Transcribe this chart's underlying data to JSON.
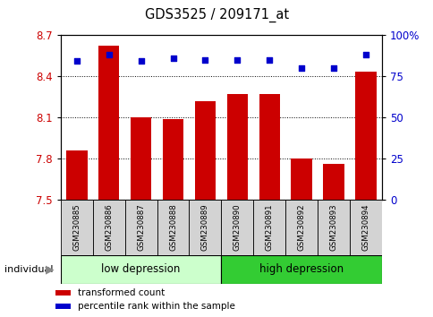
{
  "title": "GDS3525 / 209171_at",
  "samples": [
    "GSM230885",
    "GSM230886",
    "GSM230887",
    "GSM230888",
    "GSM230889",
    "GSM230890",
    "GSM230891",
    "GSM230892",
    "GSM230893",
    "GSM230894"
  ],
  "transformed_count": [
    7.86,
    8.62,
    8.1,
    8.09,
    8.22,
    8.27,
    8.27,
    7.8,
    7.76,
    8.43
  ],
  "percentile_rank": [
    84,
    88,
    84,
    86,
    85,
    85,
    85,
    80,
    80,
    88
  ],
  "ylim_left": [
    7.5,
    8.7
  ],
  "ylim_right": [
    0,
    100
  ],
  "yticks_left": [
    7.5,
    7.8,
    8.1,
    8.4,
    8.7
  ],
  "yticks_right": [
    0,
    25,
    50,
    75,
    100
  ],
  "yticks_right_labels": [
    "0",
    "25",
    "50",
    "75",
    "100%"
  ],
  "bar_color": "#cc0000",
  "dot_color": "#0000cc",
  "groups": [
    {
      "label": "low depression",
      "start": 0,
      "end": 5,
      "color": "#ccffcc"
    },
    {
      "label": "high depression",
      "start": 5,
      "end": 10,
      "color": "#33cc33"
    }
  ],
  "legend_items": [
    {
      "label": "transformed count",
      "color": "#cc0000"
    },
    {
      "label": "percentile rank within the sample",
      "color": "#0000cc"
    }
  ],
  "individual_label": "individual",
  "tick_label_color_left": "#cc0000",
  "tick_label_color_right": "#0000cc",
  "bar_bottom": 7.5,
  "sample_box_color": "#d3d3d3",
  "background_color": "#ffffff"
}
